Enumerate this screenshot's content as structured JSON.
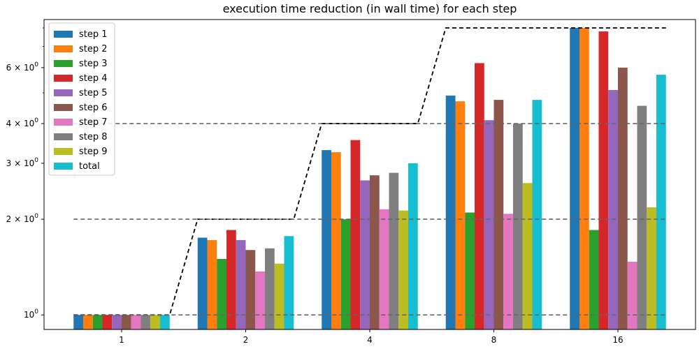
{
  "chart_data": {
    "type": "bar",
    "title": "execution time reduction (in wall time) for each step",
    "xlabel": "",
    "ylabel": "",
    "categories": [
      "1",
      "2",
      "4",
      "8",
      "16"
    ],
    "y_scale": "log",
    "ylim": [
      0.9,
      8.5
    ],
    "y_major_ticks": [
      {
        "value": 1,
        "base": "10",
        "exp": "0",
        "coef": ""
      },
      {
        "value": 2,
        "base": "10",
        "exp": "0",
        "coef": "2"
      },
      {
        "value": 3,
        "base": "10",
        "exp": "0",
        "coef": "3"
      },
      {
        "value": 4,
        "base": "10",
        "exp": "0",
        "coef": "4"
      },
      {
        "value": 6,
        "base": "10",
        "exp": "0",
        "coef": "6"
      }
    ],
    "series": [
      {
        "name": "step 1",
        "color": "#1f77b4",
        "values": [
          1.0,
          1.75,
          3.3,
          4.9,
          8.0
        ]
      },
      {
        "name": "step 2",
        "color": "#ff7f0e",
        "values": [
          1.0,
          1.72,
          3.25,
          4.7,
          8.0
        ]
      },
      {
        "name": "step 3",
        "color": "#2ca02c",
        "values": [
          1.0,
          1.5,
          2.0,
          2.1,
          1.85
        ]
      },
      {
        "name": "step 4",
        "color": "#d62728",
        "values": [
          1.0,
          1.85,
          3.55,
          6.2,
          7.8
        ]
      },
      {
        "name": "step 5",
        "color": "#9467bd",
        "values": [
          1.0,
          1.72,
          2.65,
          4.1,
          5.1
        ]
      },
      {
        "name": "step 6",
        "color": "#8c564b",
        "values": [
          1.0,
          1.6,
          2.75,
          4.75,
          6.0
        ]
      },
      {
        "name": "step 7",
        "color": "#e377c2",
        "values": [
          1.0,
          1.37,
          2.15,
          2.08,
          1.47
        ]
      },
      {
        "name": "step 8",
        "color": "#7f7f7f",
        "values": [
          1.0,
          1.62,
          2.8,
          4.0,
          4.55
        ]
      },
      {
        "name": "step 9",
        "color": "#bcbd22",
        "values": [
          1.0,
          1.45,
          2.13,
          2.6,
          2.18
        ]
      },
      {
        "name": "total",
        "color": "#17becf",
        "values": [
          1.0,
          1.77,
          3.0,
          4.75,
          5.7
        ]
      }
    ],
    "reference_lines": [
      {
        "label": "",
        "style": "dashed",
        "color": "#000000",
        "kind": "ideal-step",
        "values": [
          1,
          2,
          4,
          8,
          8
        ]
      },
      {
        "label": "",
        "style": "dashed",
        "color": "#666666",
        "kind": "horizontal",
        "values": [
          1,
          2,
          4
        ]
      }
    ],
    "legend_placement": "top-left",
    "grid": false
  }
}
